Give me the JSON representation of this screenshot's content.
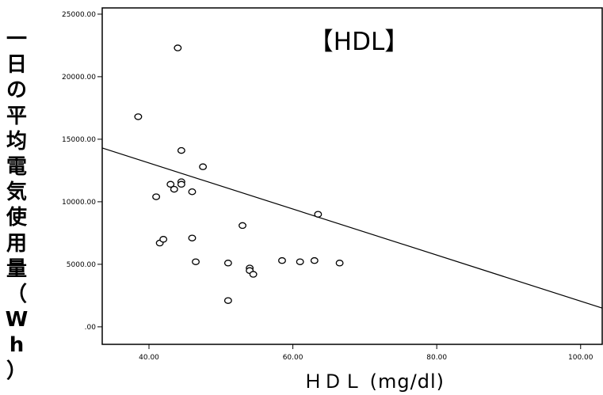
{
  "chart_data": {
    "type": "scatter",
    "title": "【HDL】",
    "xlabel": "ＨＤＬ (mg/dl)",
    "ylabel": "一日の平均電気使用量（Wh）",
    "xlim": [
      33.5,
      103
    ],
    "ylim": [
      -1400,
      25500
    ],
    "x_ticks": [
      {
        "value": 40,
        "label": "40.00"
      },
      {
        "value": 60,
        "label": "60.00"
      },
      {
        "value": 80,
        "label": "80.00"
      },
      {
        "value": 100,
        "label": "100.00"
      }
    ],
    "y_ticks": [
      {
        "value": 0,
        "label": ".00"
      },
      {
        "value": 5000,
        "label": "5000.00"
      },
      {
        "value": 10000,
        "label": "10000.00"
      },
      {
        "value": 15000,
        "label": "15000.00"
      },
      {
        "value": 20000,
        "label": "20000.00"
      },
      {
        "value": 25000,
        "label": "25000.00"
      }
    ],
    "grid": false,
    "series": [
      {
        "points": [
          {
            "x": 38.5,
            "y": 16800
          },
          {
            "x": 41.0,
            "y": 10400
          },
          {
            "x": 41.5,
            "y": 6700
          },
          {
            "x": 42.0,
            "y": 7000
          },
          {
            "x": 43.0,
            "y": 11400
          },
          {
            "x": 43.5,
            "y": 11000
          },
          {
            "x": 44.0,
            "y": 22300
          },
          {
            "x": 44.5,
            "y": 14100
          },
          {
            "x": 44.5,
            "y": 11600
          },
          {
            "x": 44.5,
            "y": 11400
          },
          {
            "x": 46.0,
            "y": 10800
          },
          {
            "x": 46.0,
            "y": 7100
          },
          {
            "x": 46.5,
            "y": 5200
          },
          {
            "x": 47.5,
            "y": 12800
          },
          {
            "x": 51.0,
            "y": 5100
          },
          {
            "x": 51.0,
            "y": 2100
          },
          {
            "x": 53.0,
            "y": 8100
          },
          {
            "x": 54.0,
            "y": 4700
          },
          {
            "x": 54.0,
            "y": 4500
          },
          {
            "x": 54.5,
            "y": 4200
          },
          {
            "x": 58.5,
            "y": 5300
          },
          {
            "x": 61.0,
            "y": 5200
          },
          {
            "x": 63.0,
            "y": 5300
          },
          {
            "x": 63.5,
            "y": 9000
          },
          {
            "x": 66.5,
            "y": 5100
          }
        ]
      }
    ],
    "trendline": {
      "x": [
        33.5,
        103
      ],
      "y": [
        14300,
        1500
      ]
    },
    "colors": {
      "marker": "#000000",
      "line": "#000000",
      "axis": "#000000"
    }
  }
}
